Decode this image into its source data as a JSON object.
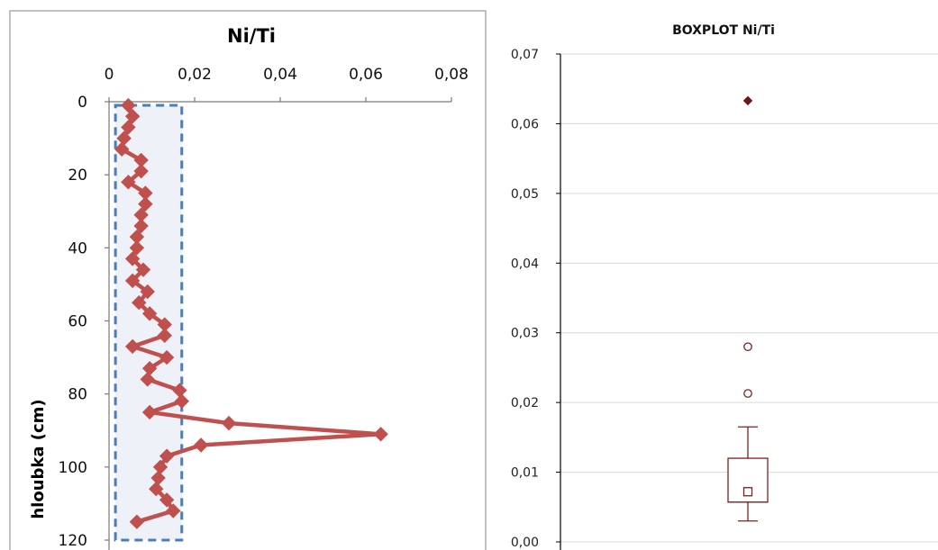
{
  "chart_data": [
    {
      "type": "line",
      "title": "Ni/Ti",
      "xlabel": "",
      "ylabel": "hloubka (cm)",
      "xlim": [
        0,
        0.08
      ],
      "ylim": [
        0,
        120
      ],
      "y_reversed": true,
      "x_ticks": [
        "0",
        "0,02",
        "0,04",
        "0,06",
        "0,08"
      ],
      "y_ticks": [
        "0",
        "20",
        "40",
        "60",
        "80",
        "100",
        "120"
      ],
      "x_axis_position": "top",
      "grid": false,
      "series": [
        {
          "color": "#c0504d",
          "points": [
            {
              "x": 0.0045,
              "y": 1
            },
            {
              "x": 0.0055,
              "y": 4
            },
            {
              "x": 0.0045,
              "y": 7
            },
            {
              "x": 0.0035,
              "y": 10
            },
            {
              "x": 0.003,
              "y": 13
            },
            {
              "x": 0.0075,
              "y": 16
            },
            {
              "x": 0.0075,
              "y": 19
            },
            {
              "x": 0.0045,
              "y": 22
            },
            {
              "x": 0.0085,
              "y": 25
            },
            {
              "x": 0.0085,
              "y": 28
            },
            {
              "x": 0.0075,
              "y": 31
            },
            {
              "x": 0.0075,
              "y": 34
            },
            {
              "x": 0.0065,
              "y": 37
            },
            {
              "x": 0.0065,
              "y": 40
            },
            {
              "x": 0.0055,
              "y": 43
            },
            {
              "x": 0.008,
              "y": 46
            },
            {
              "x": 0.0055,
              "y": 49
            },
            {
              "x": 0.009,
              "y": 52
            },
            {
              "x": 0.007,
              "y": 55
            },
            {
              "x": 0.0095,
              "y": 58
            },
            {
              "x": 0.013,
              "y": 61
            },
            {
              "x": 0.013,
              "y": 64
            },
            {
              "x": 0.0055,
              "y": 67
            },
            {
              "x": 0.0135,
              "y": 70
            },
            {
              "x": 0.0095,
              "y": 73
            },
            {
              "x": 0.009,
              "y": 76
            },
            {
              "x": 0.0165,
              "y": 79
            },
            {
              "x": 0.017,
              "y": 82
            },
            {
              "x": 0.0095,
              "y": 85
            },
            {
              "x": 0.028,
              "y": 88
            },
            {
              "x": 0.0635,
              "y": 91
            },
            {
              "x": 0.0215,
              "y": 94
            },
            {
              "x": 0.0135,
              "y": 97
            },
            {
              "x": 0.012,
              "y": 100
            },
            {
              "x": 0.0115,
              "y": 103
            },
            {
              "x": 0.011,
              "y": 106
            },
            {
              "x": 0.0135,
              "y": 109
            },
            {
              "x": 0.015,
              "y": 112
            },
            {
              "x": 0.0065,
              "y": 115
            }
          ]
        }
      ],
      "annotations": [
        {
          "type": "dashed-box",
          "x0": 0.0015,
          "x1": 0.017,
          "y0": 1,
          "y1": 120,
          "color": "#4a7ebb",
          "fill": "#eef2f8"
        }
      ]
    },
    {
      "type": "box",
      "title": "BOXPLOT Ni/Ti",
      "xlabel": "",
      "ylabel": "",
      "ylim": [
        0,
        0.07
      ],
      "y_ticks": [
        "0,00",
        "0,01",
        "0,02",
        "0,03",
        "0,04",
        "0,05",
        "0,06",
        "0,07"
      ],
      "grid": true,
      "color": "#7f1f1f",
      "box": {
        "whisker_low": 0.003,
        "q1": 0.0057,
        "median": 0.0057,
        "q3": 0.012,
        "whisker_high": 0.0165,
        "mean": 0.0072
      },
      "outliers": [
        0.0213,
        0.028
      ],
      "extremes": [
        0.0633
      ]
    }
  ]
}
